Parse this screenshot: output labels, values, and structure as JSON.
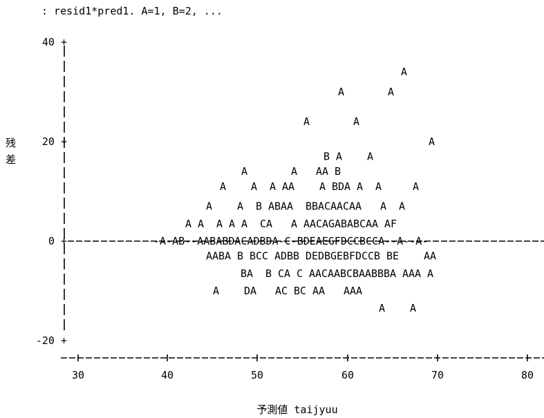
{
  "title": ": resid1*pred1. A=1, B=2, ...",
  "chart_data": {
    "type": "scatter",
    "marker_legend": "A=1, B=2, ...",
    "xlabel": "予測値 taijyuu",
    "ylabel": "残差",
    "xlim": [
      28.5,
      82
    ],
    "ylim": [
      -22,
      41
    ],
    "x_ticks": [
      30,
      40,
      50,
      60,
      70,
      80
    ],
    "y_ticks": [
      -20,
      0,
      20,
      40
    ],
    "x_tick_labels": [
      "30",
      "40",
      "50",
      "60",
      "70",
      "80"
    ],
    "y_tick_labels": [
      "-20 +",
      "0 +",
      "20 +",
      "40 +"
    ],
    "zero_line_text": "-A-AB--AABABDACADBDA-C-BDEAEGFDCCBCCA--A--A-",
    "rows": [
      {
        "y": 34,
        "text": "A"
      },
      {
        "y": 30,
        "text": "A       A"
      },
      {
        "y": 24,
        "text": "A       A"
      },
      {
        "y": 20,
        "text": "A"
      },
      {
        "y": 17,
        "text": "B A    A"
      },
      {
        "y": 14,
        "text": "A       A   AA B"
      },
      {
        "y": 11,
        "text": "A    A  A AA    A BDA A  A     A"
      },
      {
        "y": 7,
        "text": "A    A  B ABAA  BBACAACAA   A  A"
      },
      {
        "y": 3.5,
        "text": "A A  A A A  CA   A AACAGABABCAA AF"
      },
      {
        "y": -3,
        "text": "AABA B BCC ADBB DEDBGEBFDCCB BE    AA"
      },
      {
        "y": -6.5,
        "text": "BA  B CA C AACAABCBAABBBA AAA A"
      },
      {
        "y": -10,
        "text": "A    DA   AC BC AA   AAA"
      },
      {
        "y": -13.5,
        "text": "A    A"
      }
    ]
  }
}
